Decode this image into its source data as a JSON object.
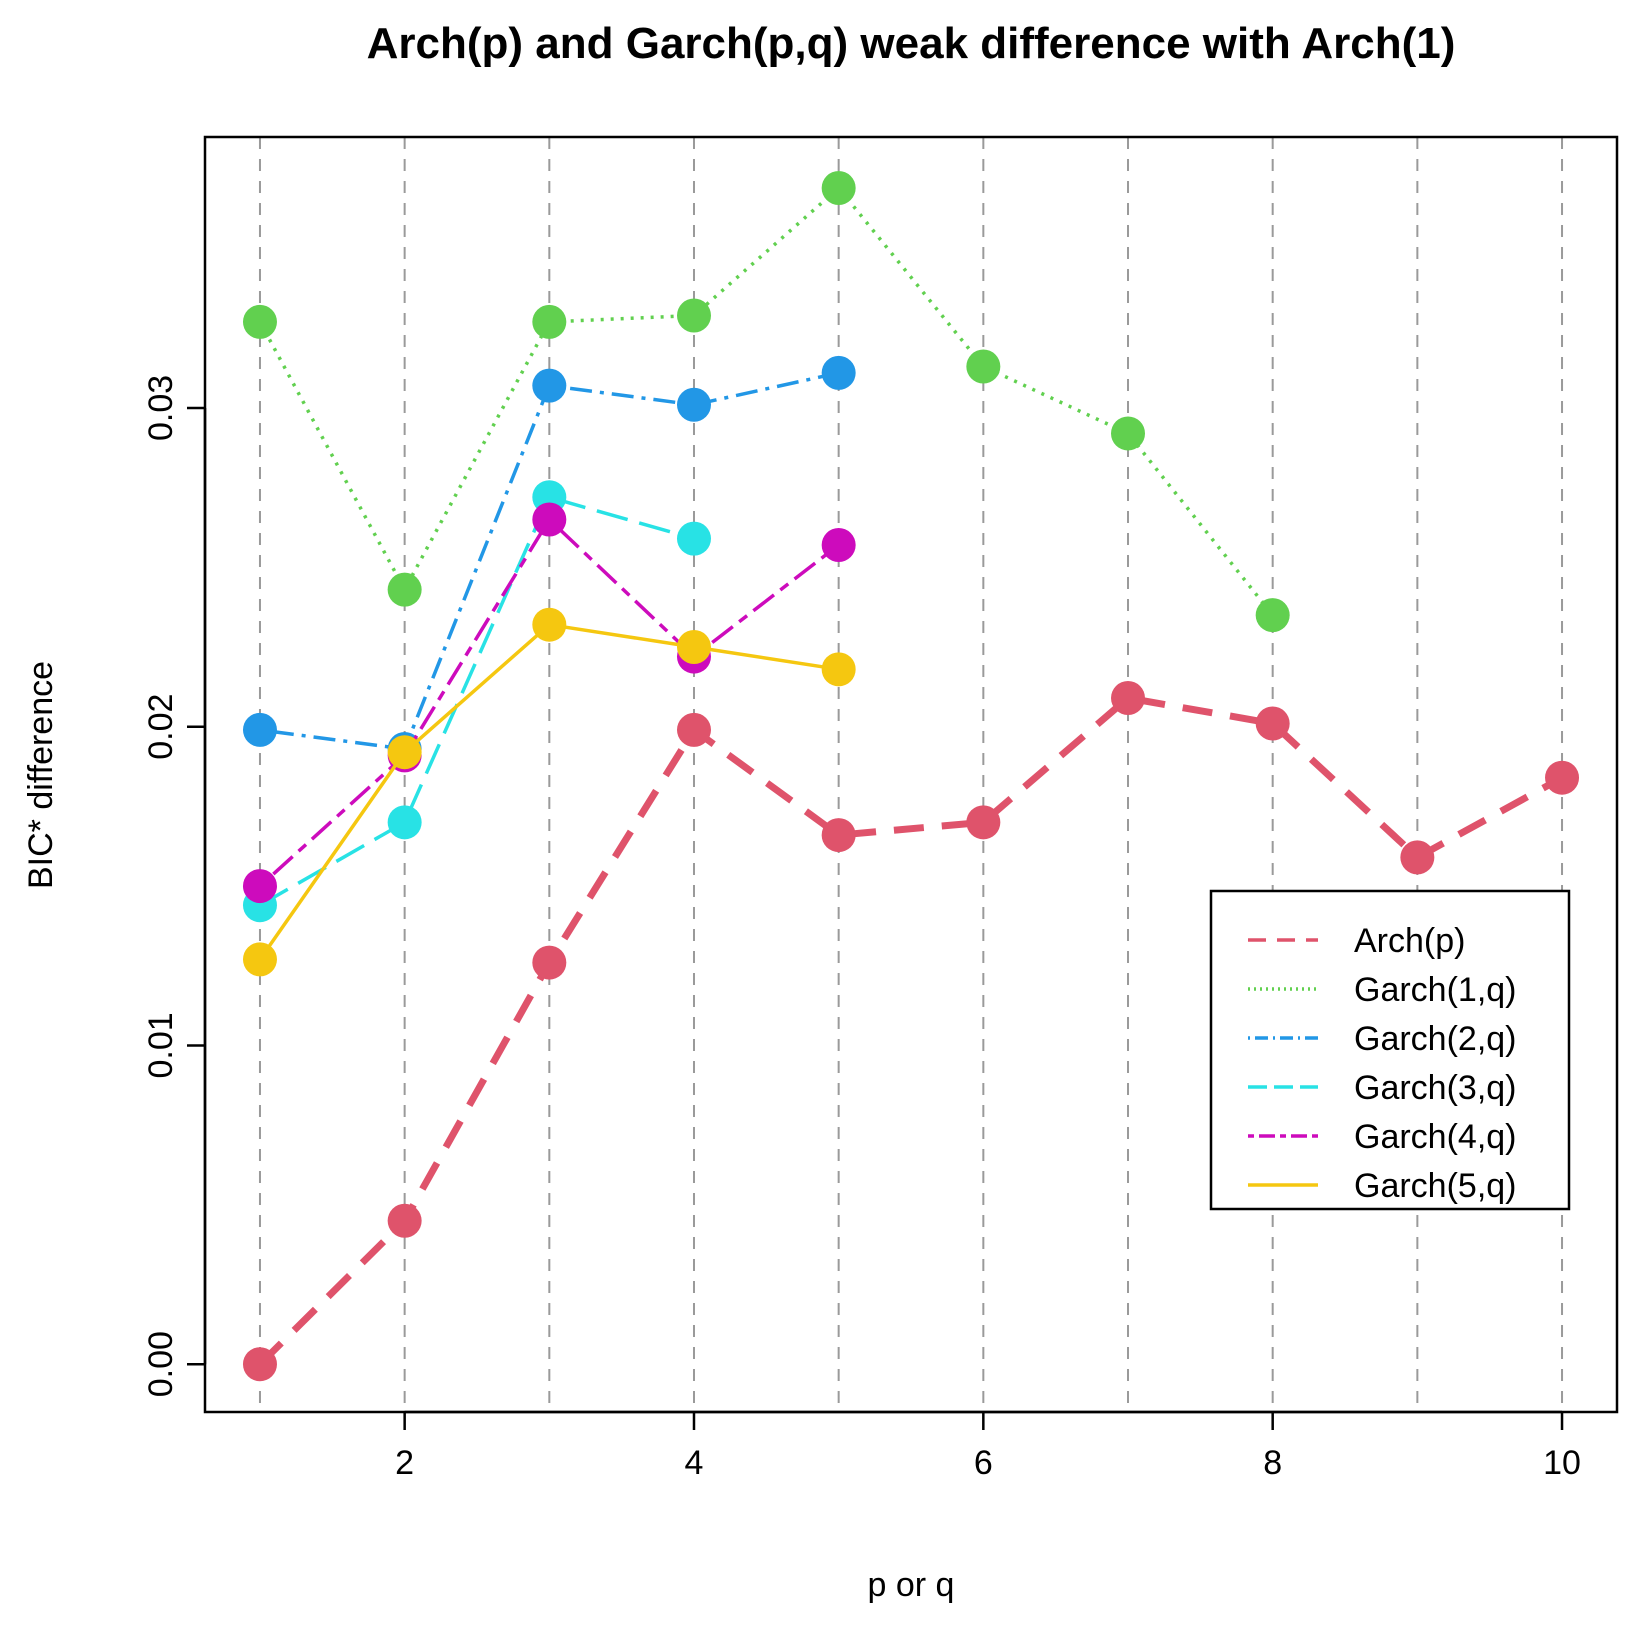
{
  "chart_data": {
    "type": "line",
    "title": "Arch(p) and Garch(p,q) weak difference with Arch(1)",
    "xlabel": "p or q",
    "ylabel": "BIC* difference",
    "xlim": [
      0.62,
      10.38
    ],
    "ylim": [
      -0.0015,
      0.0385
    ],
    "x_ticks": [
      2,
      4,
      6,
      8,
      10
    ],
    "x_tick_labels": [
      "2",
      "4",
      "6",
      "8",
      "10"
    ],
    "y_ticks": [
      0.0,
      0.01,
      0.02,
      0.03
    ],
    "y_tick_labels": [
      "0.00",
      "0.01",
      "0.02",
      "0.03"
    ],
    "vertical_gridlines_at": [
      1,
      2,
      3,
      4,
      5,
      6,
      7,
      8,
      9,
      10
    ],
    "legend_position": "right",
    "series": [
      {
        "name": "Arch(p)",
        "color": "#DF536B",
        "line_style": "dashed-thick",
        "x": [
          1,
          2,
          3,
          4,
          5,
          6,
          7,
          8,
          9,
          10
        ],
        "values": [
          0.0,
          0.0045,
          0.0126,
          0.0199,
          0.0166,
          0.017,
          0.0209,
          0.0201,
          0.0159,
          0.0184
        ]
      },
      {
        "name": "Garch(1,q)",
        "color": "#61D04F",
        "line_style": "dotted",
        "x": [
          1,
          2,
          3,
          4,
          5,
          6,
          7,
          8
        ],
        "values": [
          0.0327,
          0.0243,
          0.0327,
          0.0329,
          0.0369,
          0.0313,
          0.0292,
          0.0235
        ]
      },
      {
        "name": "Garch(2,q)",
        "color": "#2297E6",
        "line_style": "dotdash",
        "x": [
          1,
          2,
          3,
          4,
          5
        ],
        "values": [
          0.0199,
          0.0193,
          0.0307,
          0.0301,
          0.0311
        ]
      },
      {
        "name": "Garch(3,q)",
        "color": "#28E2E5",
        "line_style": "longdash",
        "x": [
          1,
          2,
          3,
          4
        ],
        "values": [
          0.0144,
          0.017,
          0.0272,
          0.0259
        ]
      },
      {
        "name": "Garch(4,q)",
        "color": "#CD0BBC",
        "line_style": "twodash",
        "x": [
          1,
          2,
          3,
          4,
          5
        ],
        "values": [
          0.015,
          0.0191,
          0.0265,
          0.0222,
          0.0257
        ]
      },
      {
        "name": "Garch(5,q)",
        "color": "#F5C710",
        "line_style": "solid",
        "x": [
          1,
          2,
          3,
          4,
          5
        ],
        "values": [
          0.0127,
          0.0192,
          0.0232,
          0.0225,
          0.0218
        ]
      }
    ]
  }
}
